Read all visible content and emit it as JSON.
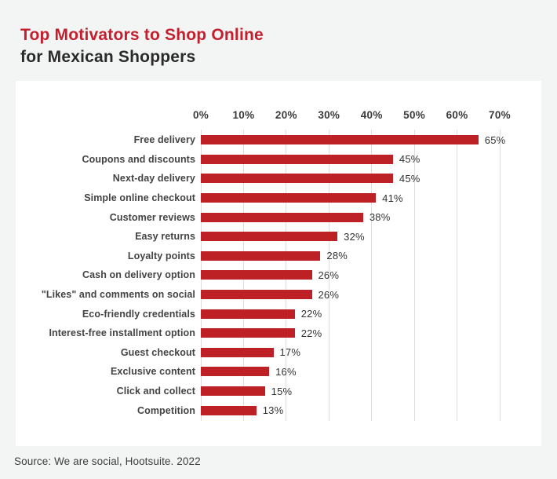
{
  "title": {
    "line1": "Top Motivators to Shop Online",
    "line2": "for Mexican Shoppers"
  },
  "source": "Source: We are social, Hootsuite. 2022",
  "colors": {
    "title_accent": "#c41f2d",
    "title_dark": "#2a2a2a",
    "background": "#f3f5f4",
    "card": "#ffffff",
    "bar": "#bd2126",
    "gridline": "#dedede",
    "label_text": "#434343"
  },
  "chart_data": {
    "type": "bar",
    "orientation": "horizontal",
    "title": "Top Motivators to Shop Online for Mexican Shoppers",
    "categories": [
      "Free delivery",
      "Coupons and discounts",
      "Next-day delivery",
      "Simple online checkout",
      "Customer reviews",
      "Easy returns",
      "Loyalty points",
      "Cash on delivery option",
      "\"Likes\" and comments on social",
      "Eco-friendly credentials",
      "Interest-free installment option",
      "Guest checkout",
      "Exclusive content",
      "Click and collect",
      "Competition"
    ],
    "values": [
      65,
      45,
      45,
      41,
      38,
      32,
      28,
      26,
      26,
      22,
      22,
      17,
      16,
      15,
      13
    ],
    "value_labels": [
      "65%",
      "45%",
      "45%",
      "41%",
      "38%",
      "32%",
      "28%",
      "26%",
      "26%",
      "22%",
      "22%",
      "17%",
      "16%",
      "15%",
      "13%"
    ],
    "axis_ticks": [
      "0%",
      "10%",
      "20%",
      "30%",
      "40%",
      "50%",
      "60%",
      "70%"
    ],
    "xlabel": "",
    "ylabel": "",
    "xlim": [
      0,
      70
    ],
    "grid": true,
    "legend": false,
    "bar_color": "#bd2126"
  }
}
